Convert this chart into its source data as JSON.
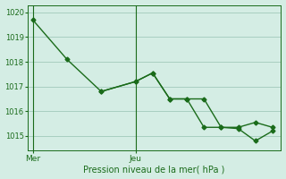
{
  "xlabel": "Pression niveau de la mer( hPa )",
  "line1_x": [
    0,
    2,
    4,
    6,
    7,
    8,
    9,
    10,
    11,
    12,
    13,
    14
  ],
  "line1_y": [
    1019.7,
    1018.1,
    1016.8,
    1017.2,
    1017.55,
    1016.5,
    1016.5,
    1016.5,
    1015.35,
    1015.35,
    1015.55,
    1015.35
  ],
  "line2_x": [
    4,
    6,
    7,
    8,
    9,
    10,
    11,
    12,
    13,
    14
  ],
  "line2_y": [
    1016.8,
    1017.2,
    1017.55,
    1016.5,
    1016.5,
    1015.35,
    1015.35,
    1015.3,
    1014.8,
    1015.2
  ],
  "line_color": "#1a6b1a",
  "background_color": "#d4ede4",
  "grid_color": "#a8cfc0",
  "ylim": [
    1014.4,
    1020.3
  ],
  "yticks": [
    1015,
    1016,
    1017,
    1018,
    1019,
    1020
  ],
  "ytick_labels": [
    "1015",
    "1016",
    "1017",
    "1018",
    "1019",
    "1020"
  ],
  "xlim": [
    -0.3,
    14.5
  ],
  "vline_x": [
    0,
    6
  ],
  "vline_labels": [
    "Mer",
    "Jeu"
  ],
  "marker": "D",
  "markersize": 2.5,
  "linewidth": 1.0
}
